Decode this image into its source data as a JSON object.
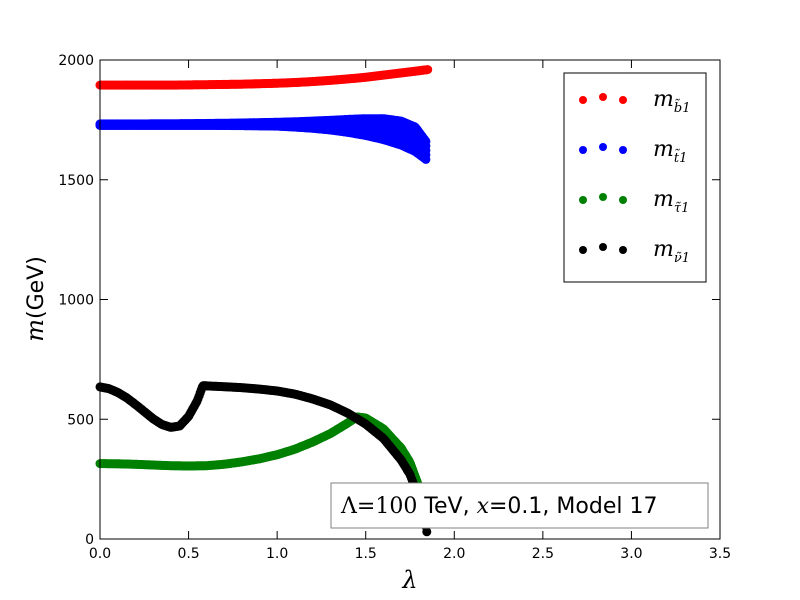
{
  "chart_data": {
    "type": "scatter",
    "xlabel": "λ",
    "ylabel_symbol": "m",
    "ylabel_unit": "(GeV)",
    "xlim": [
      0.0,
      3.5
    ],
    "ylim": [
      0,
      2000
    ],
    "xticks": [
      "0.0",
      "0.5",
      "1.0",
      "1.5",
      "2.0",
      "2.5",
      "3.0",
      "3.5"
    ],
    "xtick_values": [
      0,
      0.5,
      1.0,
      1.5,
      2.0,
      2.5,
      3.0,
      3.5
    ],
    "yticks": [
      "0",
      "500",
      "1000",
      "1500",
      "2000"
    ],
    "ytick_values": [
      0,
      500,
      1000,
      1500,
      2000
    ],
    "grid": false,
    "legend_placement": "top-right",
    "annotation": {
      "math": "Λ=100",
      "text": " TeV, ",
      "math2": "x",
      "text2": "=0.1, Model 17"
    },
    "series": [
      {
        "name": "m_b̃1",
        "legend_main": "m",
        "legend_sub": "b̃1",
        "color": "#ff0000",
        "points": [
          [
            0.0,
            1895
          ],
          [
            0.1,
            1895
          ],
          [
            0.2,
            1895
          ],
          [
            0.3,
            1895
          ],
          [
            0.4,
            1895
          ],
          [
            0.5,
            1896
          ],
          [
            0.6,
            1897
          ],
          [
            0.7,
            1898
          ],
          [
            0.8,
            1899
          ],
          [
            0.9,
            1901
          ],
          [
            1.0,
            1903
          ],
          [
            1.1,
            1906
          ],
          [
            1.2,
            1910
          ],
          [
            1.3,
            1915
          ],
          [
            1.4,
            1921
          ],
          [
            1.5,
            1928
          ],
          [
            1.6,
            1937
          ],
          [
            1.7,
            1946
          ],
          [
            1.8,
            1955
          ],
          [
            1.85,
            1960
          ]
        ]
      },
      {
        "name": "m_t̃1",
        "legend_main": "m",
        "legend_sub": "t̃1",
        "color": "#0000ff",
        "band": true,
        "points_upper": [
          [
            0.0,
            1733
          ],
          [
            0.2,
            1733
          ],
          [
            0.4,
            1734
          ],
          [
            0.6,
            1735
          ],
          [
            0.8,
            1737
          ],
          [
            1.0,
            1740
          ],
          [
            1.1,
            1742
          ],
          [
            1.2,
            1745
          ],
          [
            1.3,
            1748
          ],
          [
            1.4,
            1752
          ],
          [
            1.5,
            1755
          ],
          [
            1.6,
            1755
          ],
          [
            1.7,
            1745
          ],
          [
            1.78,
            1720
          ],
          [
            1.84,
            1660
          ]
        ],
        "points_lower": [
          [
            0.0,
            1727
          ],
          [
            0.2,
            1727
          ],
          [
            0.4,
            1727
          ],
          [
            0.6,
            1727
          ],
          [
            0.8,
            1726
          ],
          [
            1.0,
            1724
          ],
          [
            1.1,
            1720
          ],
          [
            1.2,
            1715
          ],
          [
            1.3,
            1708
          ],
          [
            1.4,
            1698
          ],
          [
            1.5,
            1685
          ],
          [
            1.6,
            1668
          ],
          [
            1.7,
            1645
          ],
          [
            1.78,
            1618
          ],
          [
            1.84,
            1585
          ]
        ]
      },
      {
        "name": "m_τ̃1",
        "legend_main": "m",
        "legend_sub": "τ̃1",
        "color": "#008000",
        "points": [
          [
            0.0,
            315
          ],
          [
            0.1,
            314
          ],
          [
            0.2,
            312
          ],
          [
            0.3,
            309
          ],
          [
            0.4,
            306
          ],
          [
            0.5,
            305
          ],
          [
            0.6,
            306
          ],
          [
            0.7,
            312
          ],
          [
            0.8,
            322
          ],
          [
            0.9,
            335
          ],
          [
            1.0,
            352
          ],
          [
            1.1,
            375
          ],
          [
            1.2,
            405
          ],
          [
            1.3,
            440
          ],
          [
            1.4,
            485
          ],
          [
            1.45,
            510
          ],
          [
            1.5,
            505
          ],
          [
            1.6,
            460
          ],
          [
            1.7,
            380
          ],
          [
            1.75,
            320
          ],
          [
            1.8,
            220
          ],
          [
            1.83,
            120
          ],
          [
            1.84,
            60
          ]
        ]
      },
      {
        "name": "m_ν̃1",
        "legend_main": "m",
        "legend_sub": "ν̃1",
        "color": "#000000",
        "points": [
          [
            0.0,
            635
          ],
          [
            0.05,
            628
          ],
          [
            0.1,
            612
          ],
          [
            0.15,
            590
          ],
          [
            0.2,
            562
          ],
          [
            0.25,
            532
          ],
          [
            0.3,
            502
          ],
          [
            0.35,
            478
          ],
          [
            0.4,
            466
          ],
          [
            0.45,
            472
          ],
          [
            0.5,
            512
          ],
          [
            0.55,
            578
          ],
          [
            0.58,
            640
          ],
          [
            0.7,
            636
          ],
          [
            0.8,
            632
          ],
          [
            0.9,
            626
          ],
          [
            1.0,
            618
          ],
          [
            1.1,
            605
          ],
          [
            1.2,
            585
          ],
          [
            1.3,
            560
          ],
          [
            1.4,
            525
          ],
          [
            1.5,
            480
          ],
          [
            1.6,
            420
          ],
          [
            1.7,
            330
          ],
          [
            1.75,
            270
          ],
          [
            1.8,
            170
          ],
          [
            1.83,
            90
          ],
          [
            1.845,
            30
          ]
        ]
      }
    ]
  }
}
